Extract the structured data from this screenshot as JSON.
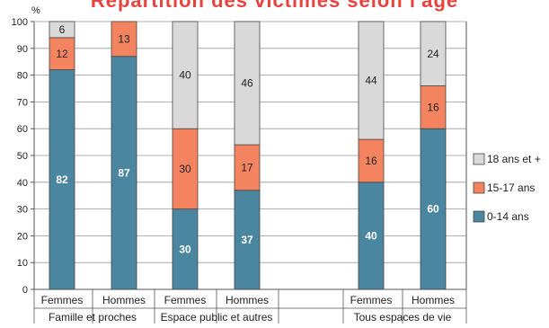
{
  "title": "Répartition des victimes selon l'âge",
  "unit_label": "%",
  "chart_data": {
    "type": "bar",
    "stacked": true,
    "ylim": [
      0,
      100
    ],
    "yticks": [
      0,
      10,
      20,
      30,
      40,
      50,
      60,
      70,
      80,
      90,
      100
    ],
    "ylabel": "%",
    "grid": true,
    "legend_position": "right",
    "categories": [
      "Femmes",
      "Hommes",
      "Femmes",
      "Hommes",
      "Femmes",
      "Hommes"
    ],
    "groups": [
      {
        "label": "Famille et proches",
        "categories": [
          "Femmes",
          "Hommes"
        ]
      },
      {
        "label": "Espace public et autres",
        "categories": [
          "Femmes",
          "Hommes"
        ]
      },
      {
        "label": "Tous espaces de vie",
        "categories": [
          "Femmes",
          "Hommes"
        ]
      }
    ],
    "series": [
      {
        "name": "0-14 ans",
        "color": "#4a86a0",
        "values": [
          82,
          87,
          30,
          37,
          40,
          60
        ]
      },
      {
        "name": "15-17 ans",
        "color": "#f4835f",
        "values": [
          12,
          13,
          30,
          17,
          16,
          16
        ]
      },
      {
        "name": "18 ans et +",
        "color": "#d9d9d9",
        "values": [
          6,
          0,
          40,
          46,
          44,
          24
        ]
      }
    ],
    "data_labels": [
      [
        "82",
        "87",
        "30",
        "37",
        "40",
        "60"
      ],
      [
        "12",
        "13",
        "30",
        "17",
        "16",
        "16"
      ],
      [
        "6",
        "",
        "40",
        "46",
        "44",
        "24"
      ]
    ],
    "legend_order": [
      "18 ans et +",
      "15-17 ans",
      "0-14 ans"
    ]
  }
}
